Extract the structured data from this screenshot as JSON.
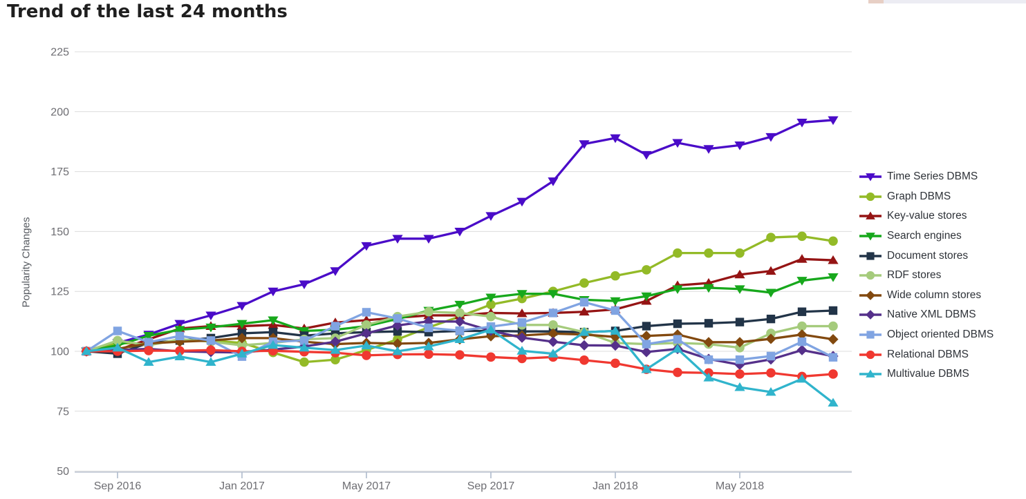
{
  "page": {
    "title": "Trend of the last 24 months",
    "background": "#ffffff"
  },
  "theme": {
    "gridline_color": "#dcdcdc",
    "axis_line_color": "#c9cfda",
    "axis_tick_color": "#aebacb",
    "axis_text_color": "#6d6d72",
    "title_color": "#1f1f1f",
    "legend_text_color": "#2e3238",
    "top_strip_color": "#ececf3",
    "top_strip_accent_color": "#e7cfc5"
  },
  "chart_data": {
    "type": "line",
    "title": "Trend of the last 24 months",
    "xlabel": "",
    "ylabel": "Popularity Changes",
    "ylim": [
      50,
      225
    ],
    "yticks": [
      50,
      75,
      100,
      125,
      150,
      175,
      200,
      225
    ],
    "grid": "horizontal",
    "legend_position": "right",
    "x": [
      "Aug 2016",
      "Sep 2016",
      "Oct 2016",
      "Nov 2016",
      "Dec 2016",
      "Jan 2017",
      "Feb 2017",
      "Mar 2017",
      "Apr 2017",
      "May 2017",
      "Jun 2017",
      "Jul 2017",
      "Aug 2017",
      "Sep 2017",
      "Oct 2017",
      "Nov 2017",
      "Dec 2017",
      "Jan 2018",
      "Feb 2018",
      "Mar 2018",
      "Apr 2018",
      "May 2018",
      "Jun 2018",
      "Jul 2018",
      "Aug 2018"
    ],
    "x_ticks_shown": [
      "Sep 2016",
      "Jan 2017",
      "May 2017",
      "Sep 2017",
      "Jan 2018",
      "May 2018"
    ],
    "series": [
      {
        "name": "Time Series DBMS",
        "color": "#4a0bc8",
        "marker": "triangle-down",
        "values": [
          100,
          103.5,
          107,
          111.5,
          115,
          119,
          125,
          128,
          133.5,
          144,
          147,
          147,
          150,
          156.5,
          162.5,
          171,
          186.5,
          189,
          182,
          187,
          184.5,
          186,
          189.5,
          195.5,
          196.5
        ]
      },
      {
        "name": "Graph DBMS",
        "color": "#93ba27",
        "marker": "circle",
        "values": [
          100,
          103.5,
          103,
          104.5,
          104.5,
          103.5,
          99.5,
          95.5,
          96.5,
          100.5,
          105,
          110,
          114.5,
          119.5,
          122,
          125,
          128.5,
          131.5,
          134,
          141,
          141,
          141,
          147.5,
          148,
          146
        ]
      },
      {
        "name": "Key-value stores",
        "color": "#951414",
        "marker": "triangle-up",
        "values": [
          100,
          100.5,
          105,
          109.5,
          110.5,
          110.5,
          111,
          109.5,
          112,
          113,
          114,
          115,
          115,
          116,
          115.8,
          116,
          116.5,
          117.5,
          121,
          127.5,
          128.5,
          132,
          133.5,
          138.5,
          138
        ]
      },
      {
        "name": "Search engines",
        "color": "#17a81c",
        "marker": "triangle-down",
        "values": [
          100,
          102.5,
          106.5,
          109,
          110,
          111.5,
          113,
          108.5,
          109,
          110.5,
          113.5,
          117,
          119.5,
          122.5,
          124,
          124,
          121.5,
          121,
          123,
          126,
          126.5,
          126,
          124.5,
          129.5,
          131
        ]
      },
      {
        "name": "Document stores",
        "color": "#223448",
        "marker": "square",
        "values": [
          100,
          99,
          103.5,
          104.5,
          105.5,
          107.5,
          108,
          106.5,
          107.5,
          108,
          108.3,
          108,
          108.5,
          108.5,
          108.3,
          108.3,
          108,
          108.5,
          110.5,
          111.5,
          111.7,
          112.2,
          113.5,
          116.5,
          117
        ]
      },
      {
        "name": "RDF stores",
        "color": "#a5cb7c",
        "marker": "circle",
        "values": [
          100,
          104.5,
          102.5,
          105,
          104,
          102.5,
          103.5,
          105,
          105.5,
          111,
          114.5,
          116.5,
          116,
          114.5,
          111,
          111,
          108,
          103.5,
          103,
          103.5,
          103,
          101.5,
          107.5,
          110.5,
          110.5
        ]
      },
      {
        "name": "Wide column stores",
        "color": "#82490f",
        "marker": "diamond",
        "values": [
          100,
          101,
          103.3,
          104,
          104.5,
          105.5,
          105.5,
          104,
          103,
          103.5,
          103.2,
          103.5,
          105,
          106.3,
          106.6,
          107.4,
          107,
          106,
          106.4,
          107,
          103.8,
          103.8,
          105.2,
          107,
          105
        ]
      },
      {
        "name": "Native XML DBMS",
        "color": "#55308a",
        "marker": "diamond",
        "values": [
          100,
          100.5,
          101,
          100,
          99.7,
          99.5,
          100.7,
          102,
          104,
          107.5,
          110.8,
          112.5,
          112.4,
          108.6,
          105.7,
          104,
          102.5,
          102.4,
          99.7,
          101,
          96.8,
          94.4,
          96.6,
          100.5,
          98
        ]
      },
      {
        "name": "Object oriented DBMS",
        "color": "#80a4e2",
        "marker": "square",
        "values": [
          100,
          108.5,
          103.8,
          106.4,
          104.5,
          97.8,
          104,
          104.5,
          110.5,
          116.3,
          113.7,
          109.8,
          108.6,
          110.3,
          112,
          116,
          120.5,
          117,
          103,
          105,
          96.5,
          96.5,
          98,
          104,
          97.5
        ]
      },
      {
        "name": "Relational DBMS",
        "color": "#f03830",
        "marker": "circle",
        "values": [
          100,
          100,
          100.3,
          100.2,
          100.5,
          100,
          100.2,
          99.8,
          99.4,
          98.3,
          98.7,
          98.8,
          98.5,
          97.6,
          97,
          97.6,
          96.3,
          95,
          92.5,
          91.2,
          91,
          90.5,
          91,
          89.5,
          90.5
        ]
      },
      {
        "name": "Multivalue DBMS",
        "color": "#30b4cc",
        "marker": "triangle-up",
        "values": [
          100,
          101.5,
          95.5,
          97.8,
          95.5,
          99,
          102.6,
          101.5,
          100.5,
          102.4,
          100,
          102,
          105,
          109,
          100.2,
          99,
          108,
          108.5,
          92.5,
          101,
          89,
          85,
          83,
          88.5,
          78.5
        ]
      }
    ]
  }
}
